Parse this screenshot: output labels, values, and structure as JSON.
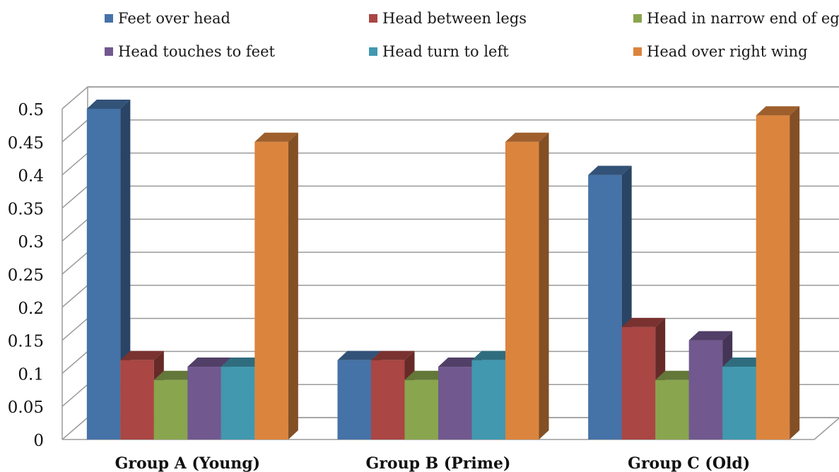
{
  "chart_data": {
    "type": "bar",
    "title": "",
    "xlabel": "",
    "ylabel": "",
    "categories": [
      "Group A (Young)",
      "Group B (Prime)",
      "Group C (Old)"
    ],
    "series": [
      {
        "name": "Feet over head",
        "color": "#4572A7",
        "values": [
          0.5,
          0.12,
          0.4
        ]
      },
      {
        "name": "Head between legs",
        "color": "#AA4643",
        "values": [
          0.12,
          0.12,
          0.17
        ]
      },
      {
        "name": "Head in narrow end of egg",
        "color": "#89A54E",
        "values": [
          0.09,
          0.09,
          0.09
        ]
      },
      {
        "name": "Head touches to feet",
        "color": "#71588F",
        "values": [
          0.11,
          0.11,
          0.15
        ]
      },
      {
        "name": "Head turn to left",
        "color": "#4198AF",
        "values": [
          0.11,
          0.12,
          0.11
        ]
      },
      {
        "name": "Head over right wing",
        "color": "#DB843D",
        "values": [
          0.45,
          0.45,
          0.49
        ]
      }
    ],
    "y_ticks": [
      "0",
      "0.05",
      "0.1",
      "0.15",
      "0.2",
      "0.25",
      "0.3",
      "0.35",
      "0.4",
      "0.45",
      "0.5"
    ],
    "ylim": [
      0,
      0.5
    ],
    "grid": true,
    "legend_position": "top",
    "style": "3d-clustered-column"
  }
}
